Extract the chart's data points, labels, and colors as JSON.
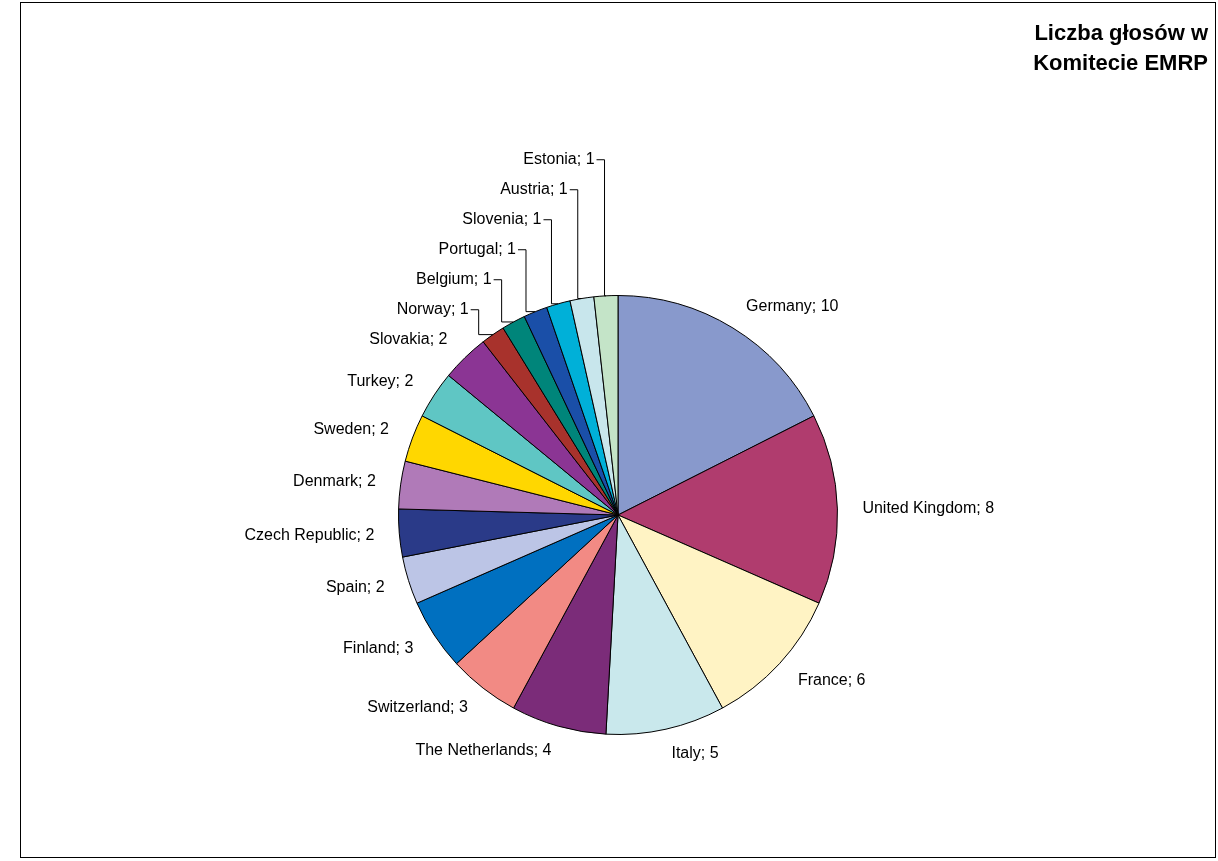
{
  "chart_data": {
    "type": "pie",
    "title": "Liczba głosów w Komitecie EMRP",
    "categories": [
      "Germany",
      "United Kingdom",
      "France",
      "Italy",
      "The Netherlands",
      "Switzerland",
      "Finland",
      "Spain",
      "Czech Republic",
      "Denmark",
      "Sweden",
      "Turkey",
      "Slovakia",
      "Norway",
      "Belgium",
      "Portugal",
      "Slovenia",
      "Austria",
      "Estonia"
    ],
    "values": [
      10,
      8,
      6,
      5,
      4,
      3,
      3,
      2,
      2,
      2,
      2,
      2,
      2,
      1,
      1,
      1,
      1,
      1,
      1
    ],
    "colors": [
      "#8899cc",
      "#b03c6e",
      "#fff3c4",
      "#c9e8ec",
      "#7b2c79",
      "#f28a84",
      "#0070c0",
      "#bcc5e6",
      "#2a3a88",
      "#b07ab8",
      "#ffd700",
      "#5fc6c4",
      "#8b3594",
      "#a8322c",
      "#00857a",
      "#1a4fa8",
      "#00b0d8",
      "#c8e6ec",
      "#c4e4c8"
    ],
    "value_labels": [
      "; 10",
      "; 8",
      "; 6",
      "; 5",
      "; 4",
      "; 3",
      "; 3",
      "; 2",
      "; 2",
      "; 2",
      "; 2",
      "; 2",
      "; 2",
      "; 1",
      "; 1",
      "; 1",
      "; 1",
      "; 1",
      "; 1"
    ]
  }
}
